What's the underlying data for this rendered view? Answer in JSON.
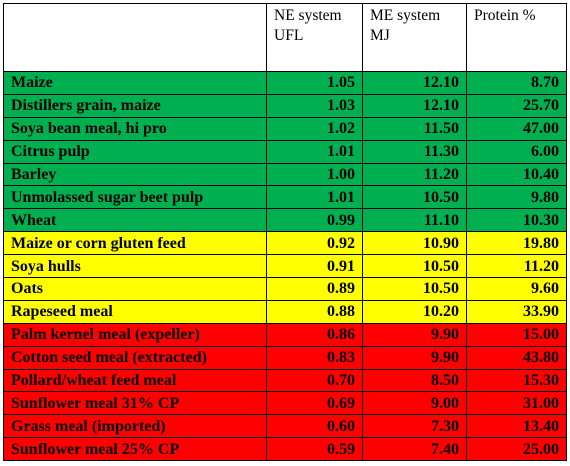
{
  "table": {
    "headers": [
      "",
      "NE system UFL",
      "ME system MJ",
      "Protein %"
    ],
    "rows": [
      {
        "feed": "Maize",
        "ufl": "1.05",
        "mj": "12.10",
        "protein": "8.70",
        "band": "green"
      },
      {
        "feed": "Distillers grain, maize",
        "ufl": "1.03",
        "mj": "12.10",
        "protein": "25.70",
        "band": "green"
      },
      {
        "feed": "Soya bean meal, hi pro",
        "ufl": "1.02",
        "mj": "11.50",
        "protein": "47.00",
        "band": "green"
      },
      {
        "feed": "Citrus pulp",
        "ufl": "1.01",
        "mj": "11.30",
        "protein": "6.00",
        "band": "green"
      },
      {
        "feed": "Barley",
        "ufl": "1.00",
        "mj": "11.20",
        "protein": "10.40",
        "band": "green"
      },
      {
        "feed": "Unmolassed sugar beet pulp",
        "ufl": "1.01",
        "mj": "10.50",
        "protein": "9.80",
        "band": "green"
      },
      {
        "feed": "Wheat",
        "ufl": "0.99",
        "mj": "11.10",
        "protein": "10.30",
        "band": "green"
      },
      {
        "feed": "Maize or corn gluten feed",
        "ufl": "0.92",
        "mj": "10.90",
        "protein": "19.80",
        "band": "yellow"
      },
      {
        "feed": "Soya hulls",
        "ufl": "0.91",
        "mj": "10.50",
        "protein": "11.20",
        "band": "yellow"
      },
      {
        "feed": "Oats",
        "ufl": "0.89",
        "mj": "10.50",
        "protein": "9.60",
        "band": "yellow"
      },
      {
        "feed": "Rapeseed meal",
        "ufl": "0.88",
        "mj": "10.20",
        "protein": "33.90",
        "band": "yellow"
      },
      {
        "feed": "Palm kernel meal (expeller)",
        "ufl": "0.86",
        "mj": "9.90",
        "protein": "15.00",
        "band": "red"
      },
      {
        "feed": "Cotton seed meal (extracted)",
        "ufl": "0.83",
        "mj": "9.90",
        "protein": "43.80",
        "band": "red"
      },
      {
        "feed": "Pollard/wheat feed meal",
        "ufl": "0.70",
        "mj": "8.50",
        "protein": "15.30",
        "band": "red"
      },
      {
        "feed": "Sunflower meal 31% CP",
        "ufl": "0.69",
        "mj": "9.00",
        "protein": "31.00",
        "band": "red"
      },
      {
        "feed": "Grass meal (imported)",
        "ufl": "0.60",
        "mj": "7.30",
        "protein": "13.40",
        "band": "red"
      },
      {
        "feed": "Sunflower meal 25% CP",
        "ufl": "0.59",
        "mj": "7.40",
        "protein": "25.00",
        "band": "red"
      }
    ]
  },
  "band_colors": {
    "green": "#00b050",
    "yellow": "#ffff00",
    "red": "#ff0000"
  }
}
